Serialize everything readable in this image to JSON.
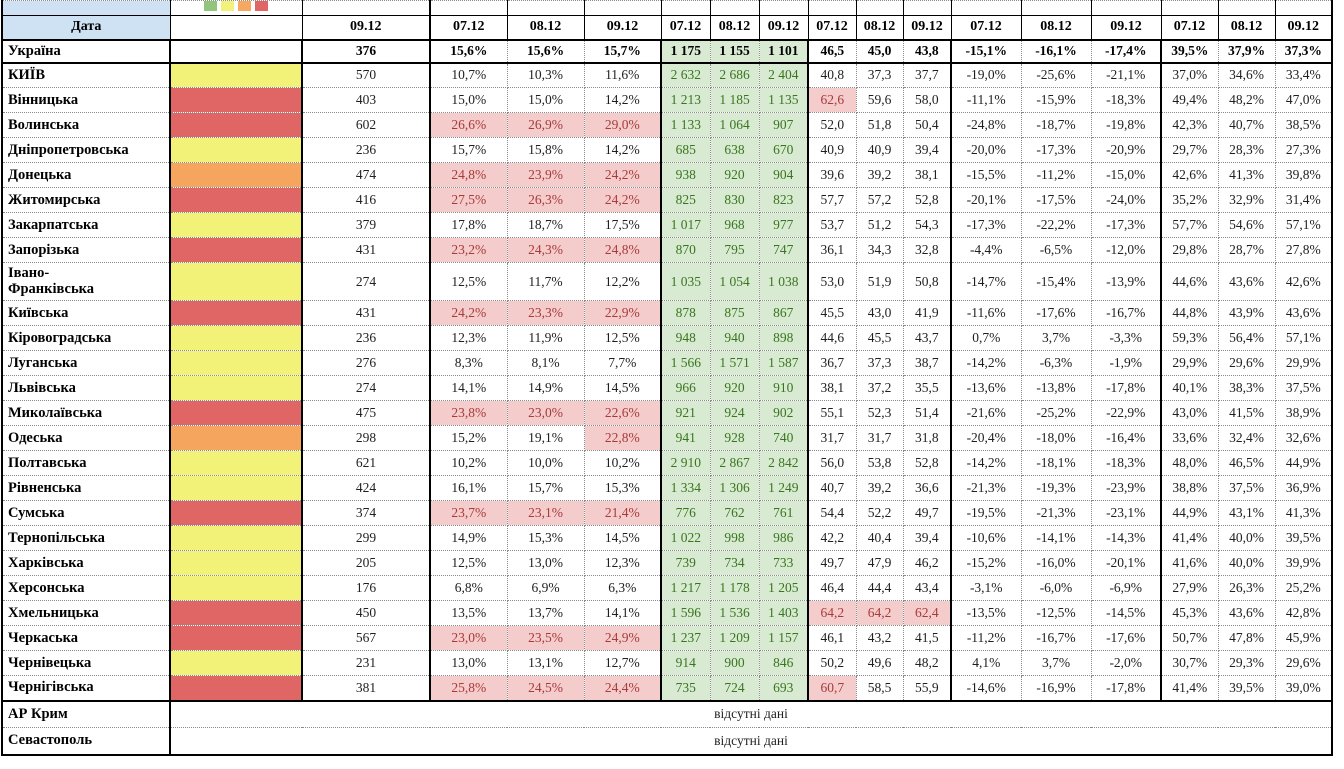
{
  "header": {
    "date_label": "Дата",
    "single_col": "09.12",
    "group_dates": [
      "07.12",
      "08.12",
      "09.12"
    ],
    "group_names": [
      "share-pct",
      "count",
      "avg",
      "change-pct",
      "final-pct"
    ]
  },
  "palette": {
    "yellow": "#f2f178",
    "red": "#e06666",
    "orange": "#f6a55f",
    "pink_bg": "#f4cccc",
    "pink_text": "#a93a3a",
    "green_bg": "#d9ead3",
    "green_text": "#38761d",
    "header_blue": "#cfe2f3",
    "legend": [
      "#93c47d",
      "#f2f178",
      "#f6a860",
      "#e06666"
    ]
  },
  "summary": {
    "name": "Україна",
    "v": "376",
    "p1": [
      "15,6%",
      "15,6%",
      "15,7%"
    ],
    "gr": [
      "1 175",
      "1 155",
      "1 101"
    ],
    "dc": [
      "46,5",
      "45,0",
      "43,8"
    ],
    "ng": [
      "-15,1%",
      "-16,1%",
      "-17,4%"
    ],
    "p2": [
      "39,5%",
      "37,9%",
      "37,3%"
    ]
  },
  "rows": [
    {
      "name": "КИЇВ",
      "color": "yellow",
      "v": "570",
      "p1": [
        "10,7%",
        "10,3%",
        "11,6%"
      ],
      "p1h": [],
      "gr": [
        "2 632",
        "2 686",
        "2 404"
      ],
      "dc": [
        "40,8",
        "37,3",
        "37,7"
      ],
      "dch": [],
      "ng": [
        "-19,0%",
        "-25,6%",
        "-21,1%"
      ],
      "p2": [
        "37,0%",
        "34,6%",
        "33,4%"
      ]
    },
    {
      "name": "Вінницька",
      "color": "red",
      "v": "403",
      "p1": [
        "15,0%",
        "15,0%",
        "14,2%"
      ],
      "p1h": [],
      "gr": [
        "1 213",
        "1 185",
        "1 135"
      ],
      "dc": [
        "62,6",
        "59,6",
        "58,0"
      ],
      "dch": [
        0
      ],
      "ng": [
        "-11,1%",
        "-15,9%",
        "-18,3%"
      ],
      "p2": [
        "49,4%",
        "48,2%",
        "47,0%"
      ]
    },
    {
      "name": "Волинська",
      "color": "red",
      "v": "602",
      "p1": [
        "26,6%",
        "26,9%",
        "29,0%"
      ],
      "p1h": [
        0,
        1,
        2
      ],
      "gr": [
        "1 133",
        "1 064",
        "907"
      ],
      "dc": [
        "52,0",
        "51,8",
        "50,4"
      ],
      "dch": [],
      "ng": [
        "-24,8%",
        "-18,7%",
        "-19,8%"
      ],
      "p2": [
        "42,3%",
        "40,7%",
        "38,5%"
      ]
    },
    {
      "name": "Дніпропетровська",
      "color": "yellow",
      "v": "236",
      "p1": [
        "15,7%",
        "15,8%",
        "14,2%"
      ],
      "p1h": [],
      "gr": [
        "685",
        "638",
        "670"
      ],
      "dc": [
        "40,9",
        "40,9",
        "39,4"
      ],
      "dch": [],
      "ng": [
        "-20,0%",
        "-17,3%",
        "-20,9%"
      ],
      "p2": [
        "29,7%",
        "28,3%",
        "27,3%"
      ]
    },
    {
      "name": "Донецька",
      "color": "orange",
      "v": "474",
      "p1": [
        "24,8%",
        "23,9%",
        "24,2%"
      ],
      "p1h": [
        0,
        1,
        2
      ],
      "gr": [
        "938",
        "920",
        "904"
      ],
      "dc": [
        "39,6",
        "39,2",
        "38,1"
      ],
      "dch": [],
      "ng": [
        "-15,5%",
        "-11,2%",
        "-15,0%"
      ],
      "p2": [
        "42,6%",
        "41,3%",
        "39,8%"
      ]
    },
    {
      "name": "Житомирська",
      "color": "red",
      "v": "416",
      "p1": [
        "27,5%",
        "26,3%",
        "24,2%"
      ],
      "p1h": [
        0,
        1,
        2
      ],
      "gr": [
        "825",
        "830",
        "823"
      ],
      "dc": [
        "57,7",
        "57,2",
        "52,8"
      ],
      "dch": [],
      "ng": [
        "-20,1%",
        "-17,5%",
        "-24,0%"
      ],
      "p2": [
        "35,2%",
        "32,9%",
        "31,4%"
      ]
    },
    {
      "name": "Закарпатська",
      "color": "yellow",
      "v": "379",
      "p1": [
        "17,8%",
        "18,7%",
        "17,5%"
      ],
      "p1h": [],
      "gr": [
        "1 017",
        "968",
        "977"
      ],
      "dc": [
        "53,7",
        "51,2",
        "54,3"
      ],
      "dch": [],
      "ng": [
        "-17,3%",
        "-22,2%",
        "-17,3%"
      ],
      "p2": [
        "57,7%",
        "54,6%",
        "57,1%"
      ]
    },
    {
      "name": "Запорізька",
      "color": "red",
      "v": "431",
      "p1": [
        "23,2%",
        "24,3%",
        "24,8%"
      ],
      "p1h": [
        0,
        1,
        2
      ],
      "gr": [
        "870",
        "795",
        "747"
      ],
      "dc": [
        "36,1",
        "34,3",
        "32,8"
      ],
      "dch": [],
      "ng": [
        "-4,4%",
        "-6,5%",
        "-12,0%"
      ],
      "p2": [
        "29,8%",
        "28,7%",
        "27,8%"
      ]
    },
    {
      "name": "Івано-\nФранківська",
      "color": "yellow",
      "v": "274",
      "tall": true,
      "p1": [
        "12,5%",
        "11,7%",
        "12,2%"
      ],
      "p1h": [],
      "gr": [
        "1 035",
        "1 054",
        "1 038"
      ],
      "dc": [
        "53,0",
        "51,9",
        "50,8"
      ],
      "dch": [],
      "ng": [
        "-14,7%",
        "-15,4%",
        "-13,9%"
      ],
      "p2": [
        "44,6%",
        "43,6%",
        "42,6%"
      ]
    },
    {
      "name": "Київська",
      "color": "red",
      "v": "431",
      "p1": [
        "24,2%",
        "23,3%",
        "22,9%"
      ],
      "p1h": [
        0,
        1,
        2
      ],
      "gr": [
        "878",
        "875",
        "867"
      ],
      "dc": [
        "45,5",
        "43,0",
        "41,9"
      ],
      "dch": [],
      "ng": [
        "-11,6%",
        "-17,6%",
        "-16,7%"
      ],
      "p2": [
        "44,8%",
        "43,9%",
        "43,6%"
      ]
    },
    {
      "name": "Кіровоградська",
      "color": "yellow",
      "v": "236",
      "p1": [
        "12,3%",
        "11,9%",
        "12,5%"
      ],
      "p1h": [],
      "gr": [
        "948",
        "940",
        "898"
      ],
      "dc": [
        "44,6",
        "45,5",
        "43,7"
      ],
      "dch": [],
      "ng": [
        "0,7%",
        "3,7%",
        "-3,3%"
      ],
      "p2": [
        "59,3%",
        "56,4%",
        "57,1%"
      ]
    },
    {
      "name": "Луганська",
      "color": "yellow",
      "v": "276",
      "p1": [
        "8,3%",
        "8,1%",
        "7,7%"
      ],
      "p1h": [],
      "gr": [
        "1 566",
        "1 571",
        "1 587"
      ],
      "dc": [
        "36,7",
        "37,3",
        "38,7"
      ],
      "dch": [],
      "ng": [
        "-14,2%",
        "-6,3%",
        "-1,9%"
      ],
      "p2": [
        "29,9%",
        "29,6%",
        "29,9%"
      ]
    },
    {
      "name": "Львівська",
      "color": "yellow",
      "v": "274",
      "p1": [
        "14,1%",
        "14,9%",
        "14,5%"
      ],
      "p1h": [],
      "gr": [
        "966",
        "920",
        "910"
      ],
      "dc": [
        "38,1",
        "37,2",
        "35,5"
      ],
      "dch": [],
      "ng": [
        "-13,6%",
        "-13,8%",
        "-17,8%"
      ],
      "p2": [
        "40,1%",
        "38,3%",
        "37,5%"
      ]
    },
    {
      "name": "Миколаївська",
      "color": "red",
      "v": "475",
      "p1": [
        "23,8%",
        "23,0%",
        "22,6%"
      ],
      "p1h": [
        0,
        1,
        2
      ],
      "gr": [
        "921",
        "924",
        "902"
      ],
      "dc": [
        "55,1",
        "52,3",
        "51,4"
      ],
      "dch": [],
      "ng": [
        "-21,6%",
        "-25,2%",
        "-22,9%"
      ],
      "p2": [
        "43,0%",
        "41,5%",
        "38,9%"
      ]
    },
    {
      "name": "Одеська",
      "color": "orange",
      "v": "298",
      "p1": [
        "15,2%",
        "19,1%",
        "22,8%"
      ],
      "p1h": [
        2
      ],
      "gr": [
        "941",
        "928",
        "740"
      ],
      "dc": [
        "31,7",
        "31,7",
        "31,8"
      ],
      "dch": [],
      "ng": [
        "-20,4%",
        "-18,0%",
        "-16,4%"
      ],
      "p2": [
        "33,6%",
        "32,4%",
        "32,6%"
      ]
    },
    {
      "name": "Полтавська",
      "color": "yellow",
      "v": "621",
      "p1": [
        "10,2%",
        "10,0%",
        "10,2%"
      ],
      "p1h": [],
      "gr": [
        "2 910",
        "2 867",
        "2 842"
      ],
      "dc": [
        "56,0",
        "53,8",
        "52,8"
      ],
      "dch": [],
      "ng": [
        "-14,2%",
        "-18,1%",
        "-18,3%"
      ],
      "p2": [
        "48,0%",
        "46,5%",
        "44,9%"
      ]
    },
    {
      "name": "Рівненська",
      "color": "yellow",
      "v": "424",
      "p1": [
        "16,1%",
        "15,7%",
        "15,3%"
      ],
      "p1h": [],
      "gr": [
        "1 334",
        "1 306",
        "1 249"
      ],
      "dc": [
        "40,7",
        "39,2",
        "36,6"
      ],
      "dch": [],
      "ng": [
        "-21,3%",
        "-19,3%",
        "-23,9%"
      ],
      "p2": [
        "38,8%",
        "37,5%",
        "36,9%"
      ]
    },
    {
      "name": "Сумська",
      "color": "red",
      "v": "374",
      "p1": [
        "23,7%",
        "23,1%",
        "21,4%"
      ],
      "p1h": [
        0,
        1,
        2
      ],
      "gr": [
        "776",
        "762",
        "761"
      ],
      "dc": [
        "54,4",
        "52,2",
        "49,7"
      ],
      "dch": [],
      "ng": [
        "-19,5%",
        "-21,3%",
        "-23,1%"
      ],
      "p2": [
        "44,9%",
        "43,1%",
        "41,3%"
      ]
    },
    {
      "name": "Тернопільська",
      "color": "yellow",
      "v": "299",
      "p1": [
        "14,9%",
        "15,3%",
        "14,5%"
      ],
      "p1h": [],
      "gr": [
        "1 022",
        "998",
        "986"
      ],
      "dc": [
        "42,2",
        "40,4",
        "39,4"
      ],
      "dch": [],
      "ng": [
        "-10,6%",
        "-14,1%",
        "-14,3%"
      ],
      "p2": [
        "41,4%",
        "40,0%",
        "39,5%"
      ]
    },
    {
      "name": "Харківська",
      "color": "yellow",
      "v": "205",
      "p1": [
        "12,5%",
        "13,0%",
        "12,3%"
      ],
      "p1h": [],
      "gr": [
        "739",
        "734",
        "733"
      ],
      "dc": [
        "49,7",
        "47,9",
        "46,2"
      ],
      "dch": [],
      "ng": [
        "-15,2%",
        "-16,0%",
        "-20,1%"
      ],
      "p2": [
        "41,6%",
        "40,0%",
        "39,9%"
      ]
    },
    {
      "name": "Херсонська",
      "color": "yellow",
      "v": "176",
      "p1": [
        "6,8%",
        "6,9%",
        "6,3%"
      ],
      "p1h": [],
      "gr": [
        "1 217",
        "1 178",
        "1 205"
      ],
      "dc": [
        "46,4",
        "44,4",
        "43,4"
      ],
      "dch": [],
      "ng": [
        "-3,1%",
        "-6,0%",
        "-6,9%"
      ],
      "p2": [
        "27,9%",
        "26,3%",
        "25,2%"
      ]
    },
    {
      "name": "Хмельницька",
      "color": "red",
      "v": "450",
      "p1": [
        "13,5%",
        "13,7%",
        "14,1%"
      ],
      "p1h": [],
      "gr": [
        "1 596",
        "1 536",
        "1 403"
      ],
      "dc": [
        "64,2",
        "64,2",
        "62,4"
      ],
      "dch": [
        0,
        1,
        2
      ],
      "ng": [
        "-13,5%",
        "-12,5%",
        "-14,5%"
      ],
      "p2": [
        "45,3%",
        "43,6%",
        "42,8%"
      ]
    },
    {
      "name": "Черкаська",
      "color": "red",
      "v": "567",
      "p1": [
        "23,0%",
        "23,5%",
        "24,9%"
      ],
      "p1h": [
        0,
        1,
        2
      ],
      "gr": [
        "1 237",
        "1 209",
        "1 157"
      ],
      "dc": [
        "46,1",
        "43,2",
        "41,5"
      ],
      "dch": [],
      "ng": [
        "-11,2%",
        "-16,7%",
        "-17,6%"
      ],
      "p2": [
        "50,7%",
        "47,8%",
        "45,9%"
      ]
    },
    {
      "name": "Чернівецька",
      "color": "yellow",
      "v": "231",
      "p1": [
        "13,0%",
        "13,1%",
        "12,7%"
      ],
      "p1h": [],
      "gr": [
        "914",
        "900",
        "846"
      ],
      "dc": [
        "50,2",
        "49,6",
        "48,2"
      ],
      "dch": [],
      "ng": [
        "4,1%",
        "3,7%",
        "-2,0%"
      ],
      "p2": [
        "30,7%",
        "29,3%",
        "29,6%"
      ]
    },
    {
      "name": "Чернігівська",
      "color": "red",
      "v": "381",
      "p1": [
        "25,8%",
        "24,5%",
        "24,4%"
      ],
      "p1h": [
        0,
        1,
        2
      ],
      "gr": [
        "735",
        "724",
        "693"
      ],
      "dc": [
        "60,7",
        "58,5",
        "55,9"
      ],
      "dch": [
        0
      ],
      "ng": [
        "-14,6%",
        "-16,9%",
        "-17,8%"
      ],
      "p2": [
        "41,4%",
        "39,5%",
        "39,0%"
      ]
    }
  ],
  "no_data_rows": [
    {
      "name": "АР Крим",
      "text": "відсутні дані"
    },
    {
      "name": "Севастополь",
      "text": "відсутні дані"
    }
  ]
}
